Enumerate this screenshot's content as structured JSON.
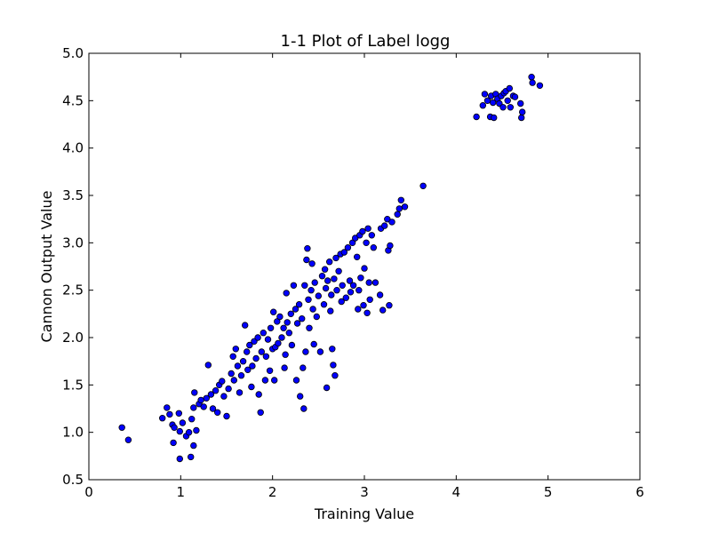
{
  "chart_data": {
    "type": "scatter",
    "title": "1-1 Plot of Label logg",
    "xlabel": "Training Value",
    "ylabel": "Cannon Output Value",
    "xlim": [
      0,
      6
    ],
    "ylim": [
      0.5,
      5.0
    ],
    "xticks": [
      "0",
      "1",
      "2",
      "3",
      "4",
      "5",
      "6"
    ],
    "yticks": [
      "0.5",
      "1.0",
      "1.5",
      "2.0",
      "2.5",
      "3.0",
      "3.5",
      "4.0",
      "4.5",
      "5.0"
    ],
    "grid": false,
    "legend": "none",
    "marker_color": "#0000ff",
    "marker_edge_color": "#000000",
    "series": [
      {
        "points": [
          [
            0.36,
            1.05
          ],
          [
            0.43,
            0.92
          ],
          [
            0.8,
            1.15
          ],
          [
            0.85,
            1.26
          ],
          [
            0.88,
            1.19
          ],
          [
            0.91,
            1.08
          ],
          [
            0.93,
            1.05
          ],
          [
            0.92,
            0.89
          ],
          [
            0.98,
            1.2
          ],
          [
            0.99,
            1.01
          ],
          [
            0.99,
            0.72
          ],
          [
            1.02,
            1.1
          ],
          [
            1.06,
            0.96
          ],
          [
            1.09,
            1.0
          ],
          [
            1.11,
            0.74
          ],
          [
            1.12,
            1.14
          ],
          [
            1.14,
            0.86
          ],
          [
            1.17,
            1.02
          ],
          [
            1.14,
            1.26
          ],
          [
            1.15,
            1.42
          ],
          [
            1.2,
            1.3
          ],
          [
            1.22,
            1.34
          ],
          [
            1.25,
            1.27
          ],
          [
            1.28,
            1.36
          ],
          [
            1.3,
            1.71
          ],
          [
            1.33,
            1.4
          ],
          [
            1.35,
            1.25
          ],
          [
            1.38,
            1.44
          ],
          [
            1.4,
            1.21
          ],
          [
            1.42,
            1.5
          ],
          [
            1.45,
            1.54
          ],
          [
            1.47,
            1.38
          ],
          [
            1.5,
            1.17
          ],
          [
            1.52,
            1.46
          ],
          [
            1.55,
            1.62
          ],
          [
            1.57,
            1.8
          ],
          [
            1.58,
            1.55
          ],
          [
            1.6,
            1.88
          ],
          [
            1.62,
            1.7
          ],
          [
            1.64,
            1.42
          ],
          [
            1.66,
            1.6
          ],
          [
            1.68,
            1.75
          ],
          [
            1.7,
            2.13
          ],
          [
            1.72,
            1.85
          ],
          [
            1.73,
            1.66
          ],
          [
            1.75,
            1.92
          ],
          [
            1.77,
            1.48
          ],
          [
            1.78,
            1.7
          ],
          [
            1.8,
            1.96
          ],
          [
            1.82,
            1.78
          ],
          [
            1.84,
            2.0
          ],
          [
            1.85,
            1.4
          ],
          [
            1.87,
            1.21
          ],
          [
            1.88,
            1.85
          ],
          [
            1.9,
            2.05
          ],
          [
            1.92,
            1.55
          ],
          [
            1.93,
            1.8
          ],
          [
            1.95,
            1.98
          ],
          [
            1.97,
            1.65
          ],
          [
            1.98,
            2.1
          ],
          [
            2.0,
            1.88
          ],
          [
            2.01,
            2.27
          ],
          [
            2.02,
            1.55
          ],
          [
            2.03,
            1.9
          ],
          [
            2.05,
            2.17
          ],
          [
            2.06,
            1.94
          ],
          [
            2.08,
            2.22
          ],
          [
            2.1,
            2.0
          ],
          [
            2.12,
            2.1
          ],
          [
            2.13,
            1.68
          ],
          [
            2.14,
            1.82
          ],
          [
            2.15,
            2.47
          ],
          [
            2.16,
            2.16
          ],
          [
            2.18,
            2.05
          ],
          [
            2.2,
            2.25
          ],
          [
            2.21,
            1.92
          ],
          [
            2.23,
            2.55
          ],
          [
            2.25,
            2.3
          ],
          [
            2.26,
            1.55
          ],
          [
            2.27,
            2.15
          ],
          [
            2.29,
            2.35
          ],
          [
            2.3,
            1.38
          ],
          [
            2.32,
            2.2
          ],
          [
            2.33,
            1.68
          ],
          [
            2.34,
            1.25
          ],
          [
            2.35,
            2.55
          ],
          [
            2.36,
            1.85
          ],
          [
            2.37,
            2.82
          ],
          [
            2.38,
            2.94
          ],
          [
            2.39,
            2.4
          ],
          [
            2.4,
            2.1
          ],
          [
            2.42,
            2.5
          ],
          [
            2.43,
            2.78
          ],
          [
            2.44,
            2.3
          ],
          [
            2.45,
            1.93
          ],
          [
            2.46,
            2.58
          ],
          [
            2.48,
            2.22
          ],
          [
            2.5,
            2.44
          ],
          [
            2.52,
            1.85
          ],
          [
            2.54,
            2.65
          ],
          [
            2.56,
            2.35
          ],
          [
            2.57,
            2.72
          ],
          [
            2.58,
            2.52
          ],
          [
            2.59,
            1.47
          ],
          [
            2.6,
            2.6
          ],
          [
            2.62,
            2.8
          ],
          [
            2.63,
            2.28
          ],
          [
            2.64,
            2.45
          ],
          [
            2.65,
            1.88
          ],
          [
            2.66,
            1.71
          ],
          [
            2.67,
            2.62
          ],
          [
            2.68,
            1.6
          ],
          [
            2.69,
            2.84
          ],
          [
            2.7,
            2.5
          ],
          [
            2.72,
            2.7
          ],
          [
            2.74,
            2.88
          ],
          [
            2.75,
            2.38
          ],
          [
            2.76,
            2.55
          ],
          [
            2.78,
            2.9
          ],
          [
            2.8,
            2.42
          ],
          [
            2.82,
            2.95
          ],
          [
            2.84,
            2.6
          ],
          [
            2.85,
            2.48
          ],
          [
            2.87,
            3.0
          ],
          [
            2.88,
            2.55
          ],
          [
            2.9,
            3.05
          ],
          [
            2.92,
            2.85
          ],
          [
            2.93,
            2.3
          ],
          [
            2.94,
            2.5
          ],
          [
            2.95,
            3.08
          ],
          [
            2.96,
            2.63
          ],
          [
            2.98,
            3.12
          ],
          [
            2.99,
            2.34
          ],
          [
            3.0,
            2.73
          ],
          [
            3.02,
            3.0
          ],
          [
            3.03,
            2.26
          ],
          [
            3.04,
            3.15
          ],
          [
            3.05,
            2.58
          ],
          [
            3.06,
            2.4
          ],
          [
            3.08,
            3.08
          ],
          [
            3.1,
            2.95
          ],
          [
            3.12,
            2.58
          ],
          [
            3.17,
            2.45
          ],
          [
            3.18,
            3.15
          ],
          [
            3.2,
            2.29
          ],
          [
            3.22,
            3.18
          ],
          [
            3.25,
            3.25
          ],
          [
            3.26,
            2.92
          ],
          [
            3.27,
            2.34
          ],
          [
            3.28,
            2.97
          ],
          [
            3.3,
            3.22
          ],
          [
            3.36,
            3.3
          ],
          [
            3.38,
            3.36
          ],
          [
            3.4,
            3.45
          ],
          [
            3.44,
            3.38
          ],
          [
            3.64,
            3.6
          ],
          [
            4.22,
            4.33
          ],
          [
            4.29,
            4.45
          ],
          [
            4.31,
            4.57
          ],
          [
            4.34,
            4.5
          ],
          [
            4.37,
            4.33
          ],
          [
            4.38,
            4.55
          ],
          [
            4.4,
            4.48
          ],
          [
            4.41,
            4.32
          ],
          [
            4.43,
            4.57
          ],
          [
            4.45,
            4.52
          ],
          [
            4.47,
            4.47
          ],
          [
            4.49,
            4.55
          ],
          [
            4.51,
            4.43
          ],
          [
            4.52,
            4.58
          ],
          [
            4.54,
            4.6
          ],
          [
            4.56,
            4.5
          ],
          [
            4.58,
            4.63
          ],
          [
            4.59,
            4.43
          ],
          [
            4.62,
            4.55
          ],
          [
            4.64,
            4.54
          ],
          [
            4.7,
            4.47
          ],
          [
            4.71,
            4.32
          ],
          [
            4.72,
            4.38
          ],
          [
            4.82,
            4.75
          ],
          [
            4.83,
            4.69
          ],
          [
            4.91,
            4.66
          ]
        ]
      }
    ]
  }
}
